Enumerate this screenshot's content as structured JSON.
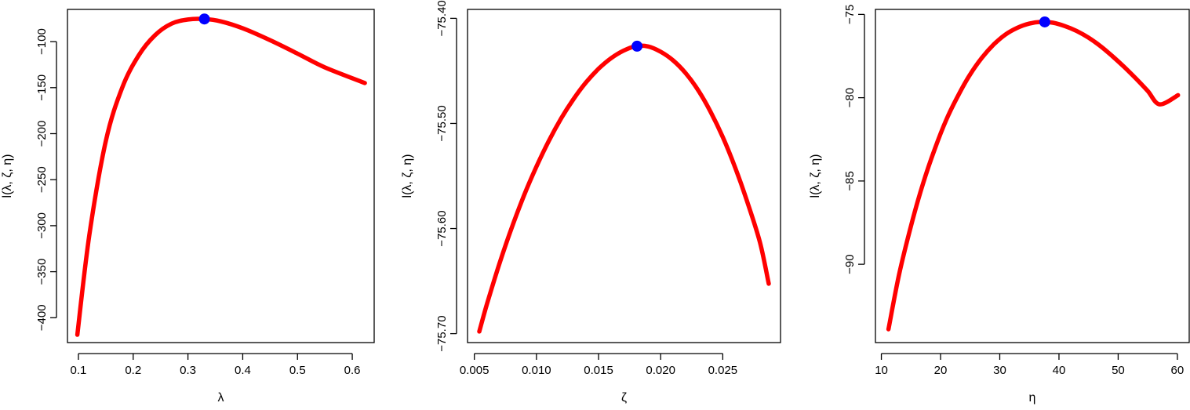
{
  "colors": {
    "curve": "#ff0000",
    "point": "#0000ff",
    "axis": "#000000"
  },
  "chart_data": [
    {
      "type": "line",
      "xlabel": "λ",
      "ylabel": "l(λ, ζ, η)",
      "xlim": [
        0.08,
        0.64
      ],
      "ylim": [
        -427,
        -65
      ],
      "xticks": [
        0.1,
        0.2,
        0.3,
        0.4,
        0.5,
        0.6
      ],
      "yticks": [
        -400,
        -350,
        -300,
        -250,
        -200,
        -150,
        -100
      ],
      "grid": false,
      "series": [
        {
          "x": [
            0.098,
            0.12,
            0.15,
            0.18,
            0.21,
            0.24,
            0.27,
            0.3,
            0.33,
            0.36,
            0.4,
            0.45,
            0.5,
            0.55,
            0.623
          ],
          "y": [
            -418.5,
            -310,
            -208,
            -150,
            -115,
            -93,
            -80.5,
            -76,
            -75.5,
            -78,
            -85.5,
            -98.5,
            -113,
            -128,
            -145
          ]
        }
      ],
      "max_point": {
        "x": 0.33,
        "y": -75.4
      }
    },
    {
      "type": "line",
      "xlabel": "ζ",
      "ylabel": "l(λ, ζ, η)",
      "xlim": [
        0.00445,
        0.02965
      ],
      "ylim": [
        -75.7085,
        -75.3915
      ],
      "xticks": [
        0.005,
        0.01,
        0.015,
        0.02,
        0.025
      ],
      "yticks": [
        -75.7,
        -75.6,
        -75.5,
        -75.4
      ],
      "grid": false,
      "series": [
        {
          "x": [
            0.0054,
            0.006,
            0.007,
            0.008,
            0.009,
            0.01,
            0.011,
            0.012,
            0.013,
            0.014,
            0.015,
            0.016,
            0.017,
            0.018,
            0.019,
            0.02,
            0.021,
            0.022,
            0.023,
            0.024,
            0.025,
            0.026,
            0.027,
            0.028,
            0.0287
          ],
          "y": [
            -75.698,
            -75.6725,
            -75.634,
            -75.5995,
            -75.5685,
            -75.541,
            -75.5165,
            -75.495,
            -75.4765,
            -75.4608,
            -75.448,
            -75.438,
            -75.4308,
            -75.4265,
            -75.4268,
            -75.4318,
            -75.44,
            -75.452,
            -75.468,
            -75.4885,
            -75.513,
            -75.542,
            -75.5755,
            -75.6135,
            -75.6525
          ]
        }
      ],
      "max_point": {
        "x": 0.0181,
        "y": -75.4265
      }
    },
    {
      "type": "line",
      "xlabel": "η",
      "ylabel": "l(λ, ζ, η)",
      "xlim": [
        9.0,
        62.0
      ],
      "ylim": [
        -94.7,
        -74.7
      ],
      "xticks": [
        10,
        20,
        30,
        40,
        50,
        60
      ],
      "yticks": [
        -90,
        -85,
        -80,
        -75
      ],
      "grid": false,
      "series": [
        {
          "x": [
            11.2,
            13,
            15,
            17,
            19,
            21,
            23,
            25,
            27,
            29,
            31,
            33,
            35,
            37,
            39,
            41,
            43,
            45,
            47,
            49,
            51,
            53,
            55,
            57,
            60.1
          ],
          "y": [
            -93.9,
            -90.6,
            -87.7,
            -85.2,
            -83.1,
            -81.3,
            -79.85,
            -78.6,
            -77.6,
            -76.8,
            -76.2,
            -75.8,
            -75.55,
            -75.45,
            -75.5,
            -75.7,
            -76.0,
            -76.4,
            -76.9,
            -77.5,
            -78.15,
            -78.85,
            -79.6,
            -80.4,
            -79.85
          ]
        }
      ],
      "max_point": {
        "x": 37.6,
        "y": -75.45
      }
    }
  ]
}
